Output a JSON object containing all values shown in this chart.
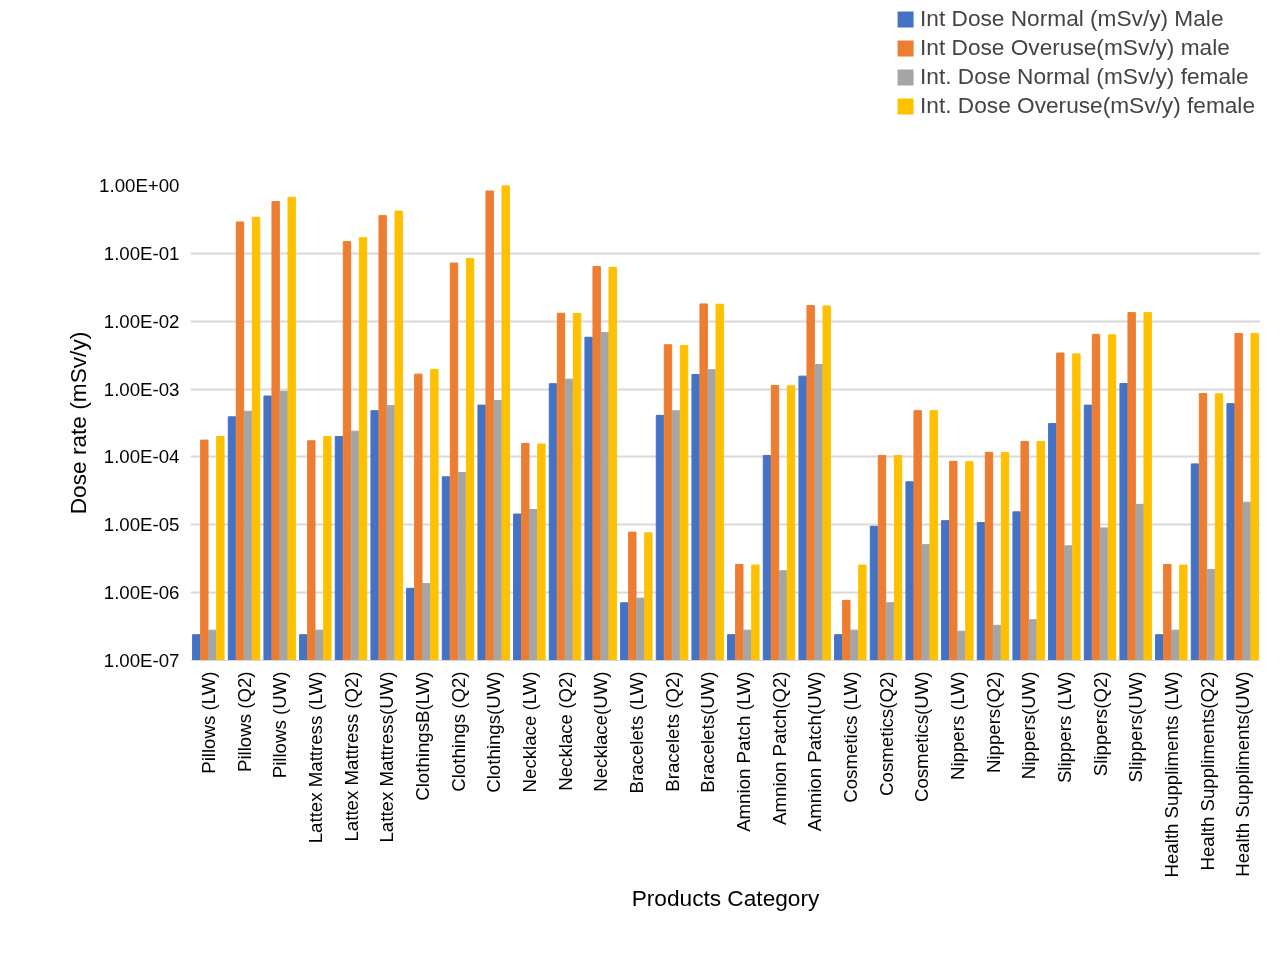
{
  "chart_data": {
    "type": "bar",
    "xlabel": "Products Category",
    "ylabel": "Dose rate (mSv/y)",
    "log": "y",
    "grid": "y",
    "legend": "top right",
    "categories": [
      "Pillows (LW)",
      "Pillows (Q2)",
      "Pillows (UW)",
      "Lattex Mattress (LW)",
      "Lattex Mattress (Q2)",
      "Lattex Mattress(UW)",
      "ClothingsB(LW)",
      "Clothings (Q2)",
      "Clothings(UW)",
      "Necklace (LW)",
      "Necklace (Q2)",
      "Necklace(UW)",
      "Bracelets (LW)",
      "Bracelets (Q2)",
      "Bracelets(UW)",
      "Amnion Patch (LW)",
      "Amnion Patch(Q2)",
      "Amnion Patch(UW)",
      "Cosmetics (LW)",
      "Cosmetics(Q2)",
      "Cosmetics(UW)",
      "Nippers (LW)",
      "Nippers(Q2)",
      "Nippers(UW)",
      "Slippers (LW)",
      "Slippers(Q2)",
      "Slippers(UW)",
      "Health Suppliments (LW)",
      "Health Suppliments(Q2)",
      "Health Suppliments(UW)"
    ],
    "ylim": [
      1e-07,
      1
    ],
    "yticks": [
      {
        "value": 1e-07,
        "label": "1.00E-07"
      },
      {
        "value": 1e-06,
        "label": "1.00E-06"
      },
      {
        "value": 1e-05,
        "label": "1.00E-05"
      },
      {
        "value": 0.0001,
        "label": "1.00E-04"
      },
      {
        "value": 0.001,
        "label": "1.00E-03"
      },
      {
        "value": 0.01,
        "label": "1.00E-02"
      },
      {
        "value": 0.1,
        "label": "1.00E-01"
      },
      {
        "value": 1,
        "label": "1.00E+00"
      }
    ],
    "series": [
      {
        "name": "Int Dose Normal (mSv/y) Male",
        "color": "#4472c4",
        "values": [
          2.4e-07,
          0.00039,
          0.00079,
          2.4e-07,
          0.0002,
          0.00048,
          1.16e-06,
          5.1e-05,
          0.00058,
          1.44e-05,
          0.0012,
          0.0058,
          7.1e-07,
          0.00041,
          0.00164,
          2.4e-07,
          0.000105,
          0.00155,
          2.4e-07,
          9.5e-06,
          4.3e-05,
          1.15e-05,
          1.08e-05,
          1.55e-05,
          0.00031,
          0.00058,
          0.00121,
          2.4e-07,
          7.9e-05,
          0.00061
        ]
      },
      {
        "name": "Int Dose Overuse(mSv/y) male",
        "color": "#ed7d31",
        "values": [
          0.000177,
          0.29,
          0.58,
          0.000173,
          0.149,
          0.36,
          0.00166,
          0.072,
          0.83,
          0.000158,
          0.0131,
          0.064,
          7.8e-06,
          0.0045,
          0.018,
          2.6e-06,
          0.00113,
          0.017,
          7.7e-07,
          0.000105,
          0.00048,
          8.6e-05,
          0.000117,
          0.000169,
          0.0034,
          0.0064,
          0.0134,
          2.6e-06,
          0.00086,
          0.0066
        ]
      },
      {
        "name": "Int. Dose Normal (mSv/y) female",
        "color": "#a5a5a5",
        "values": [
          2.8e-07,
          0.00047,
          0.00093,
          2.8e-07,
          0.00024,
          0.00057,
          1.36e-06,
          5.9e-05,
          0.00068,
          1.68e-05,
          0.0014,
          0.0068,
          8.3e-07,
          0.00048,
          0.00193,
          2.8e-07,
          2.1e-06,
          0.0023,
          2.8e-07,
          7.1e-07,
          5.1e-06,
          2.7e-07,
          3.3e-07,
          4e-07,
          4.9e-06,
          9e-06,
          2e-05,
          2.8e-07,
          2.2e-06,
          2.15e-05
        ]
      },
      {
        "name": "Int. Dose Overuse(mSv/y) female",
        "color": "#ffc000",
        "values": [
          0.0002,
          0.34,
          0.67,
          0.0002,
          0.17,
          0.42,
          0.00195,
          0.084,
          1.0,
          0.000155,
          0.013,
          0.062,
          7.6e-06,
          0.0044,
          0.0178,
          2.55e-06,
          0.00112,
          0.0168,
          2.55e-06,
          0.000105,
          0.00048,
          8.5e-05,
          0.000116,
          0.000169,
          0.0033,
          0.0063,
          0.0134,
          2.55e-06,
          0.00085,
          0.0066
        ]
      }
    ]
  }
}
